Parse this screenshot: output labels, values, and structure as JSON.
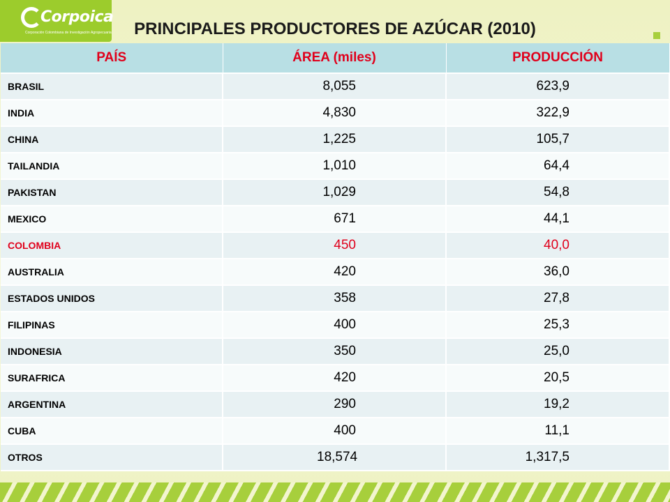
{
  "title": "PRINCIPALES PRODUCTORES DE AZÚCAR (2010)",
  "logo": {
    "name": "Corpoica",
    "tagline": "Corporación Colombiana de Investigación Agropecuaria"
  },
  "colors": {
    "header_bg": "#b8dfe4",
    "header_text": "#e0001b",
    "highlight": "#e0001b",
    "brand_green": "#9ccc2c"
  },
  "table": {
    "headers": [
      "PAÍS",
      "ÁREA  (miles)",
      "PRODUCCIÓN"
    ],
    "rows": [
      {
        "pais": "BRASIL",
        "area": "8,055",
        "produccion": "623,9"
      },
      {
        "pais": "INDIA",
        "area": "4,830",
        "produccion": "322,9"
      },
      {
        "pais": "CHINA",
        "area": "1,225",
        "produccion": "105,7"
      },
      {
        "pais": "TAILANDIA",
        "area": "1,010",
        "produccion": "64,4"
      },
      {
        "pais": "PAKISTAN",
        "area": "1,029",
        "produccion": "54,8"
      },
      {
        "pais": "MEXICO",
        "area": "671",
        "produccion": "44,1"
      },
      {
        "pais": "COLOMBIA",
        "area": "450",
        "produccion": "40,0",
        "highlight": true
      },
      {
        "pais": "AUSTRALIA",
        "area": "420",
        "produccion": "36,0"
      },
      {
        "pais": "ESTADOS UNIDOS",
        "area": "358",
        "produccion": "27,8"
      },
      {
        "pais": "FILIPINAS",
        "area": "400",
        "produccion": "25,3"
      },
      {
        "pais": "INDONESIA",
        "area": "350",
        "produccion": "25,0"
      },
      {
        "pais": "SURAFRICA",
        "area": "420",
        "produccion": "20,5"
      },
      {
        "pais": "ARGENTINA",
        "area": "290",
        "produccion": "19,2"
      },
      {
        "pais": "CUBA",
        "area": "400",
        "produccion": "11,1"
      },
      {
        "pais": "OTROS",
        "area": "18,574",
        "produccion": "1,317,5"
      }
    ]
  }
}
